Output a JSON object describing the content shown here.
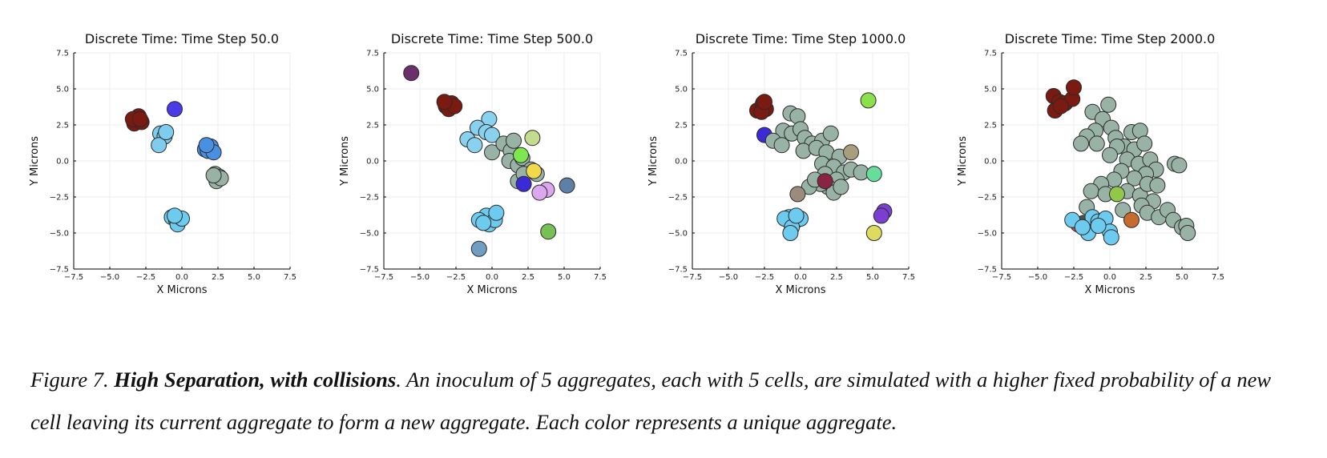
{
  "chart_data": [
    {
      "type": "scatter",
      "title": "Discrete Time: Time Step 50.0",
      "xlabel": "X Microns",
      "ylabel": "Y Microns",
      "xlim": [
        -7.5,
        7.5
      ],
      "ylim": [
        -7.5,
        7.5
      ],
      "xticks": [
        "−7.5",
        "−5.0",
        "−2.5",
        "0.0",
        "2.5",
        "5.0",
        "7.5"
      ],
      "yticks": [
        "−7.5",
        "−5.0",
        "−2.5",
        "0.0",
        "2.5",
        "5.0",
        "7.5"
      ],
      "grid": true,
      "points": [
        {
          "x": -3.3,
          "y": 2.6,
          "color": "#7a1a10"
        },
        {
          "x": -3.0,
          "y": 3.1,
          "color": "#7a1a10"
        },
        {
          "x": -2.8,
          "y": 2.7,
          "color": "#7a1a10"
        },
        {
          "x": -3.4,
          "y": 2.9,
          "color": "#7a1a10"
        },
        {
          "x": -2.9,
          "y": 2.9,
          "color": "#7a1a10"
        },
        {
          "x": -0.5,
          "y": 3.6,
          "color": "#4b3ae8"
        },
        {
          "x": -1.5,
          "y": 1.9,
          "color": "#7ecdef"
        },
        {
          "x": -1.2,
          "y": 1.7,
          "color": "#7ecdef"
        },
        {
          "x": -1.6,
          "y": 1.1,
          "color": "#7ecdef"
        },
        {
          "x": -1.1,
          "y": 2.0,
          "color": "#7ecdef"
        },
        {
          "x": 1.6,
          "y": 0.8,
          "color": "#4a90e2"
        },
        {
          "x": 2.0,
          "y": 1.0,
          "color": "#4a90e2"
        },
        {
          "x": 1.8,
          "y": 0.7,
          "color": "#4a90e2"
        },
        {
          "x": 2.2,
          "y": 0.6,
          "color": "#4a90e2"
        },
        {
          "x": 1.7,
          "y": 1.1,
          "color": "#4a90e2"
        },
        {
          "x": 2.3,
          "y": -0.9,
          "color": "#98b3a6"
        },
        {
          "x": 2.6,
          "y": -1.1,
          "color": "#98b3a6"
        },
        {
          "x": 2.4,
          "y": -1.4,
          "color": "#98b3a6"
        },
        {
          "x": 2.7,
          "y": -1.2,
          "color": "#98b3a6"
        },
        {
          "x": 2.2,
          "y": -1.0,
          "color": "#98b3a6"
        },
        {
          "x": -0.7,
          "y": -3.9,
          "color": "#6ccbee"
        },
        {
          "x": -0.4,
          "y": -4.1,
          "color": "#6ccbee"
        },
        {
          "x": -0.3,
          "y": -4.4,
          "color": "#6ccbee"
        },
        {
          "x": 0.0,
          "y": -4.0,
          "color": "#6ccbee"
        },
        {
          "x": -0.5,
          "y": -3.8,
          "color": "#6ccbee"
        }
      ]
    },
    {
      "type": "scatter",
      "title": "Discrete Time: Time Step 500.0",
      "xlabel": "X Microns",
      "ylabel": "Y Microns",
      "xlim": [
        -7.5,
        7.5
      ],
      "ylim": [
        -7.5,
        7.5
      ],
      "xticks": [
        "−7.5",
        "−5.0",
        "−2.5",
        "0.0",
        "2.5",
        "5.0",
        "7.5"
      ],
      "yticks": [
        "−7.5",
        "−5.0",
        "−2.5",
        "0.0",
        "2.5",
        "5.0",
        "7.5"
      ],
      "grid": true,
      "points": [
        {
          "x": -5.6,
          "y": 6.1,
          "color": "#6b2f6b"
        },
        {
          "x": -3.2,
          "y": 3.8,
          "color": "#7a1a10"
        },
        {
          "x": -2.8,
          "y": 4.0,
          "color": "#7a1a10"
        },
        {
          "x": -3.0,
          "y": 3.6,
          "color": "#7a1a10"
        },
        {
          "x": -2.6,
          "y": 3.8,
          "color": "#7a1a10"
        },
        {
          "x": -3.3,
          "y": 4.1,
          "color": "#7a1a10"
        },
        {
          "x": -0.2,
          "y": 2.9,
          "color": "#88d2ef"
        },
        {
          "x": -1.0,
          "y": 2.3,
          "color": "#88d2ef"
        },
        {
          "x": -0.4,
          "y": 2.0,
          "color": "#88d2ef"
        },
        {
          "x": -1.7,
          "y": 1.5,
          "color": "#88d2ef"
        },
        {
          "x": -1.2,
          "y": 1.1,
          "color": "#88d2ef"
        },
        {
          "x": 0.0,
          "y": 1.8,
          "color": "#88d2ef"
        },
        {
          "x": 2.8,
          "y": 1.6,
          "color": "#c4dc8e"
        },
        {
          "x": 0.0,
          "y": 0.6,
          "color": "#98b3a6"
        },
        {
          "x": 0.8,
          "y": 1.2,
          "color": "#98b3a6"
        },
        {
          "x": 1.3,
          "y": 0.7,
          "color": "#98b3a6"
        },
        {
          "x": 1.5,
          "y": 1.4,
          "color": "#98b3a6"
        },
        {
          "x": 1.2,
          "y": 0.0,
          "color": "#98b3a6"
        },
        {
          "x": 1.8,
          "y": -0.3,
          "color": "#98b3a6"
        },
        {
          "x": 2.1,
          "y": 0.2,
          "color": "#98b3a6"
        },
        {
          "x": 1.8,
          "y": -1.4,
          "color": "#98b3a6"
        },
        {
          "x": 2.7,
          "y": -0.6,
          "color": "#98b3a6"
        },
        {
          "x": 2.2,
          "y": -0.9,
          "color": "#98b3a6"
        },
        {
          "x": 3.1,
          "y": -0.9,
          "color": "#98b3a6"
        },
        {
          "x": 2.2,
          "y": -1.6,
          "color": "#3a2bd6"
        },
        {
          "x": 2.0,
          "y": 0.4,
          "color": "#7de84e"
        },
        {
          "x": 2.9,
          "y": -0.7,
          "color": "#f1d94a"
        },
        {
          "x": 3.8,
          "y": -2.0,
          "color": "#dba7ee"
        },
        {
          "x": 3.3,
          "y": -2.2,
          "color": "#dba7ee"
        },
        {
          "x": 5.2,
          "y": -1.7,
          "color": "#5e7fa6"
        },
        {
          "x": -0.4,
          "y": -3.8,
          "color": "#6ccbee"
        },
        {
          "x": -0.9,
          "y": -4.1,
          "color": "#6ccbee"
        },
        {
          "x": -0.2,
          "y": -4.4,
          "color": "#6ccbee"
        },
        {
          "x": 0.2,
          "y": -4.1,
          "color": "#6ccbee"
        },
        {
          "x": -0.6,
          "y": -4.3,
          "color": "#6ccbee"
        },
        {
          "x": 0.3,
          "y": -3.6,
          "color": "#6ccbee"
        },
        {
          "x": -0.9,
          "y": -6.1,
          "color": "#6f9ec2"
        },
        {
          "x": 3.9,
          "y": -4.9,
          "color": "#78bf55"
        }
      ]
    },
    {
      "type": "scatter",
      "title": "Discrete Time: Time Step 1000.0",
      "xlabel": "X Microns",
      "ylabel": "Y Microns",
      "xlim": [
        -7.5,
        7.5
      ],
      "ylim": [
        -7.5,
        7.5
      ],
      "xticks": [
        "−7.5",
        "−5.0",
        "−2.5",
        "0.0",
        "2.5",
        "5.0",
        "7.5"
      ],
      "yticks": [
        "−7.5",
        "−5.0",
        "−2.5",
        "0.0",
        "2.5",
        "5.0",
        "7.5"
      ],
      "grid": true,
      "points": [
        {
          "x": -3.0,
          "y": 3.5,
          "color": "#7a1a10"
        },
        {
          "x": -2.6,
          "y": 4.0,
          "color": "#7a1a10"
        },
        {
          "x": -2.4,
          "y": 3.6,
          "color": "#7a1a10"
        },
        {
          "x": -2.7,
          "y": 3.4,
          "color": "#7a1a10"
        },
        {
          "x": -2.5,
          "y": 4.1,
          "color": "#7a1a10"
        },
        {
          "x": -2.5,
          "y": 1.8,
          "color": "#3a2bd6"
        },
        {
          "x": 4.7,
          "y": 4.2,
          "color": "#8be04e"
        },
        {
          "x": -0.7,
          "y": 3.3,
          "color": "#98b3a6"
        },
        {
          "x": -0.2,
          "y": 3.1,
          "color": "#98b3a6"
        },
        {
          "x": -1.2,
          "y": 2.1,
          "color": "#98b3a6"
        },
        {
          "x": -0.6,
          "y": 1.9,
          "color": "#98b3a6"
        },
        {
          "x": 0.0,
          "y": 2.2,
          "color": "#98b3a6"
        },
        {
          "x": -1.9,
          "y": 1.4,
          "color": "#98b3a6"
        },
        {
          "x": -1.3,
          "y": 1.1,
          "color": "#98b3a6"
        },
        {
          "x": 0.3,
          "y": 1.6,
          "color": "#98b3a6"
        },
        {
          "x": 0.8,
          "y": 1.2,
          "color": "#98b3a6"
        },
        {
          "x": 1.5,
          "y": 1.4,
          "color": "#98b3a6"
        },
        {
          "x": 2.1,
          "y": 1.9,
          "color": "#98b3a6"
        },
        {
          "x": 0.2,
          "y": 0.7,
          "color": "#98b3a6"
        },
        {
          "x": 1.1,
          "y": 0.9,
          "color": "#98b3a6"
        },
        {
          "x": 1.8,
          "y": 0.6,
          "color": "#98b3a6"
        },
        {
          "x": 2.7,
          "y": 0.3,
          "color": "#98b3a6"
        },
        {
          "x": 1.5,
          "y": -0.2,
          "color": "#98b3a6"
        },
        {
          "x": 2.3,
          "y": -0.4,
          "color": "#98b3a6"
        },
        {
          "x": 3.0,
          "y": -0.8,
          "color": "#98b3a6"
        },
        {
          "x": 1.7,
          "y": -0.9,
          "color": "#98b3a6"
        },
        {
          "x": 2.5,
          "y": -1.3,
          "color": "#98b3a6"
        },
        {
          "x": 1.9,
          "y": -1.8,
          "color": "#98b3a6"
        },
        {
          "x": 2.3,
          "y": -2.2,
          "color": "#98b3a6"
        },
        {
          "x": 1.4,
          "y": -1.6,
          "color": "#98b3a6"
        },
        {
          "x": 0.6,
          "y": -1.8,
          "color": "#98b3a6"
        },
        {
          "x": 1.0,
          "y": -1.3,
          "color": "#98b3a6"
        },
        {
          "x": 2.8,
          "y": -1.8,
          "color": "#98b3a6"
        },
        {
          "x": 3.5,
          "y": -0.6,
          "color": "#98b3a6"
        },
        {
          "x": 4.2,
          "y": -0.8,
          "color": "#98b3a6"
        },
        {
          "x": 3.5,
          "y": 0.6,
          "color": "#a89d7c"
        },
        {
          "x": 1.7,
          "y": -1.4,
          "color": "#8b2345"
        },
        {
          "x": -0.2,
          "y": -2.3,
          "color": "#9b8b7c"
        },
        {
          "x": 5.1,
          "y": -0.9,
          "color": "#67dd9c"
        },
        {
          "x": 5.8,
          "y": -3.5,
          "color": "#7a3fd1"
        },
        {
          "x": 5.6,
          "y": -3.8,
          "color": "#7a3fd1"
        },
        {
          "x": 5.1,
          "y": -5.0,
          "color": "#dcdc60"
        },
        {
          "x": -0.8,
          "y": -3.9,
          "color": "#6ccbee"
        },
        {
          "x": -0.4,
          "y": -4.2,
          "color": "#6ccbee"
        },
        {
          "x": -1.1,
          "y": -4.0,
          "color": "#6ccbee"
        },
        {
          "x": 0.0,
          "y": -4.0,
          "color": "#6ccbee"
        },
        {
          "x": -0.6,
          "y": -4.6,
          "color": "#6ccbee"
        },
        {
          "x": -0.7,
          "y": -5.0,
          "color": "#6ccbee"
        },
        {
          "x": -0.3,
          "y": -3.8,
          "color": "#6ccbee"
        }
      ]
    },
    {
      "type": "scatter",
      "title": "Discrete Time: Time Step 2000.0",
      "xlabel": "X Microns",
      "ylabel": "Y Microns",
      "xlim": [
        -7.5,
        7.5
      ],
      "ylim": [
        -7.5,
        7.5
      ],
      "xticks": [
        "−7.5",
        "−5.0",
        "−2.5",
        "0.0",
        "2.5",
        "5.0",
        "7.5"
      ],
      "yticks": [
        "−7.5",
        "−5.0",
        "−2.5",
        "0.0",
        "2.5",
        "5.0",
        "7.5"
      ],
      "grid": true,
      "points": [
        {
          "x": -3.9,
          "y": 4.5,
          "color": "#7a1a10"
        },
        {
          "x": -3.5,
          "y": 4.1,
          "color": "#7a1a10"
        },
        {
          "x": -3.8,
          "y": 3.5,
          "color": "#7a1a10"
        },
        {
          "x": -3.1,
          "y": 4.0,
          "color": "#7a1a10"
        },
        {
          "x": -2.6,
          "y": 4.3,
          "color": "#7a1a10"
        },
        {
          "x": -2.5,
          "y": 5.1,
          "color": "#7a1a10"
        },
        {
          "x": -3.4,
          "y": 3.8,
          "color": "#7a1a10"
        },
        {
          "x": -1.2,
          "y": 3.4,
          "color": "#98b3a6"
        },
        {
          "x": -0.1,
          "y": 3.9,
          "color": "#98b3a6"
        },
        {
          "x": -0.5,
          "y": 2.9,
          "color": "#98b3a6"
        },
        {
          "x": 0.1,
          "y": 2.3,
          "color": "#98b3a6"
        },
        {
          "x": -1.0,
          "y": 2.1,
          "color": "#98b3a6"
        },
        {
          "x": -1.6,
          "y": 1.7,
          "color": "#98b3a6"
        },
        {
          "x": -2.0,
          "y": 1.2,
          "color": "#98b3a6"
        },
        {
          "x": -0.9,
          "y": 1.2,
          "color": "#98b3a6"
        },
        {
          "x": 0.4,
          "y": 1.6,
          "color": "#98b3a6"
        },
        {
          "x": 1.0,
          "y": 1.0,
          "color": "#98b3a6"
        },
        {
          "x": 1.5,
          "y": 2.0,
          "color": "#98b3a6"
        },
        {
          "x": 2.1,
          "y": 2.1,
          "color": "#98b3a6"
        },
        {
          "x": 0.5,
          "y": 1.0,
          "color": "#98b3a6"
        },
        {
          "x": 1.7,
          "y": 0.8,
          "color": "#98b3a6"
        },
        {
          "x": 2.4,
          "y": 1.2,
          "color": "#98b3a6"
        },
        {
          "x": 0.0,
          "y": 0.4,
          "color": "#98b3a6"
        },
        {
          "x": 1.2,
          "y": 0.1,
          "color": "#98b3a6"
        },
        {
          "x": 2.0,
          "y": -0.2,
          "color": "#98b3a6"
        },
        {
          "x": 2.8,
          "y": 0.1,
          "color": "#98b3a6"
        },
        {
          "x": 3.2,
          "y": -0.6,
          "color": "#98b3a6"
        },
        {
          "x": 2.5,
          "y": -0.9,
          "color": "#98b3a6"
        },
        {
          "x": 1.7,
          "y": -1.2,
          "color": "#98b3a6"
        },
        {
          "x": 0.8,
          "y": -0.7,
          "color": "#98b3a6"
        },
        {
          "x": 0.3,
          "y": -1.3,
          "color": "#98b3a6"
        },
        {
          "x": -0.6,
          "y": -1.6,
          "color": "#98b3a6"
        },
        {
          "x": -1.3,
          "y": -2.1,
          "color": "#98b3a6"
        },
        {
          "x": -0.3,
          "y": -2.3,
          "color": "#98b3a6"
        },
        {
          "x": 1.2,
          "y": -2.1,
          "color": "#98b3a6"
        },
        {
          "x": 2.1,
          "y": -2.4,
          "color": "#98b3a6"
        },
        {
          "x": 2.6,
          "y": -1.6,
          "color": "#98b3a6"
        },
        {
          "x": 3.3,
          "y": -1.7,
          "color": "#98b3a6"
        },
        {
          "x": 3.0,
          "y": -2.8,
          "color": "#98b3a6"
        },
        {
          "x": 2.2,
          "y": -3.1,
          "color": "#98b3a6"
        },
        {
          "x": 2.6,
          "y": -3.6,
          "color": "#98b3a6"
        },
        {
          "x": 3.4,
          "y": -3.9,
          "color": "#98b3a6"
        },
        {
          "x": 4.0,
          "y": -3.4,
          "color": "#98b3a6"
        },
        {
          "x": 4.4,
          "y": -4.1,
          "color": "#98b3a6"
        },
        {
          "x": 5.0,
          "y": -4.6,
          "color": "#98b3a6"
        },
        {
          "x": 5.3,
          "y": -4.5,
          "color": "#98b3a6"
        },
        {
          "x": 5.4,
          "y": -5.0,
          "color": "#98b3a6"
        },
        {
          "x": 4.5,
          "y": -0.2,
          "color": "#98b3a6"
        },
        {
          "x": 4.8,
          "y": -0.3,
          "color": "#98b3a6"
        },
        {
          "x": -1.6,
          "y": -3.2,
          "color": "#98b3a6"
        },
        {
          "x": 0.9,
          "y": -3.4,
          "color": "#98b3a6"
        },
        {
          "x": 0.5,
          "y": -2.3,
          "color": "#92c84a"
        },
        {
          "x": 1.5,
          "y": -4.1,
          "color": "#c66a2e"
        },
        {
          "x": -2.2,
          "y": -4.4,
          "color": "#e0424b"
        },
        {
          "x": -1.8,
          "y": -4.3,
          "color": "#4f4f48"
        },
        {
          "x": -2.6,
          "y": -4.1,
          "color": "#6ccbee"
        },
        {
          "x": -1.2,
          "y": -3.9,
          "color": "#6ccbee"
        },
        {
          "x": -0.8,
          "y": -4.2,
          "color": "#6ccbee"
        },
        {
          "x": -1.5,
          "y": -5.0,
          "color": "#6ccbee"
        },
        {
          "x": -0.3,
          "y": -4.0,
          "color": "#6ccbee"
        },
        {
          "x": 0.0,
          "y": -4.9,
          "color": "#6ccbee"
        },
        {
          "x": -0.8,
          "y": -4.5,
          "color": "#6ccbee"
        },
        {
          "x": 0.1,
          "y": -5.3,
          "color": "#6ccbee"
        },
        {
          "x": -1.9,
          "y": -4.6,
          "color": "#6ccbee"
        }
      ]
    }
  ],
  "caption": {
    "prefix": "Figure 7. ",
    "bold": "High Separation, with collisions",
    "rest": ". An inoculum of 5 aggregates, each with 5 cells, are simulated with a higher fixed probability of a new cell leaving its current aggregate to form a new  aggregate. Each color represents a unique aggregate."
  }
}
